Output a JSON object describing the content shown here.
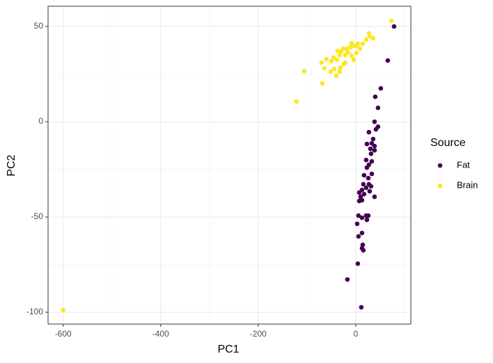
{
  "chart_data": {
    "type": "scatter",
    "x_label": "PC1",
    "y_label": "PC2",
    "xlim": [
      -631,
      113
    ],
    "ylim": [
      -106.2,
      60.6
    ],
    "xticks": [
      -600,
      -400,
      -200,
      0
    ],
    "yticks": [
      -100,
      -50,
      0,
      50
    ],
    "grid": true,
    "legend_title": "Source",
    "legend_position": "right",
    "series": [
      {
        "name": "Fat",
        "color": "#440154",
        "x": [
          78.6,
          65.7,
          51.4,
          40,
          45.7,
          38.6,
          45.7,
          41.4,
          27,
          35.7,
          32.9,
          22.9,
          38.6,
          30,
          38.6,
          31.4,
          21.4,
          32.9,
          27,
          22.9,
          32.9,
          17.1,
          25.7,
          27,
          15.7,
          31.4,
          21.4,
          12.9,
          28.6,
          7.1,
          17.1,
          10,
          38.6,
          12.9,
          7.1,
          5.7,
          21.4,
          25.7,
          12.9,
          22.9,
          2.9,
          12.9,
          5.7,
          14.3,
          12.9,
          15.7,
          4.3,
          -17.1,
          11.4
        ],
        "values": [
          50,
          32.1,
          17.5,
          13.1,
          7.3,
          0,
          -2.6,
          -4,
          -5.5,
          -9.1,
          -11.3,
          -11.7,
          -12.8,
          -14.2,
          -15,
          -16.8,
          -20.1,
          -20.8,
          -22.6,
          -24.1,
          -27.4,
          -28.1,
          -29.6,
          -32.8,
          -32.8,
          -33.9,
          -34.7,
          -35.8,
          -36.5,
          -37.2,
          -38,
          -39.4,
          -39.4,
          -41.2,
          -41.6,
          -49.3,
          -49.3,
          -49.3,
          -50.4,
          -51.5,
          -53.6,
          -58.4,
          -60.2,
          -64.6,
          -66.4,
          -67.5,
          -74.5,
          -82.8,
          -97.4
        ]
      },
      {
        "name": "Brain",
        "color": "#FDE725",
        "x": [
          72.9,
          27,
          35.7,
          21.4,
          28.6,
          14.3,
          4.3,
          -8.6,
          -4.3,
          -11.4,
          -20,
          -25.7,
          -30,
          -15.7,
          -37.1,
          -32.9,
          -21.4,
          -8.6,
          1.4,
          8.6,
          -4.3,
          -45.7,
          -60,
          -50,
          -38.6,
          -21.4,
          -24.3,
          -70,
          -31.4,
          -44.3,
          -64.3,
          -51.4,
          -40,
          -32.9,
          -105.7,
          -68.6,
          -121.4,
          -600,
          1.4
        ],
        "values": [
          52.9,
          46.4,
          43.8,
          43.1,
          44.9,
          40.9,
          40.9,
          41.2,
          39.8,
          39.1,
          38.3,
          38.3,
          36.9,
          36.5,
          37.2,
          35,
          35,
          34.7,
          36.1,
          38.3,
          32.5,
          33.6,
          32.8,
          31.8,
          32.5,
          31,
          30.3,
          31,
          28.5,
          27.7,
          28.1,
          26.3,
          24.1,
          26.3,
          26.6,
          20.1,
          10.6,
          -98.9,
          39.8
        ]
      }
    ]
  }
}
